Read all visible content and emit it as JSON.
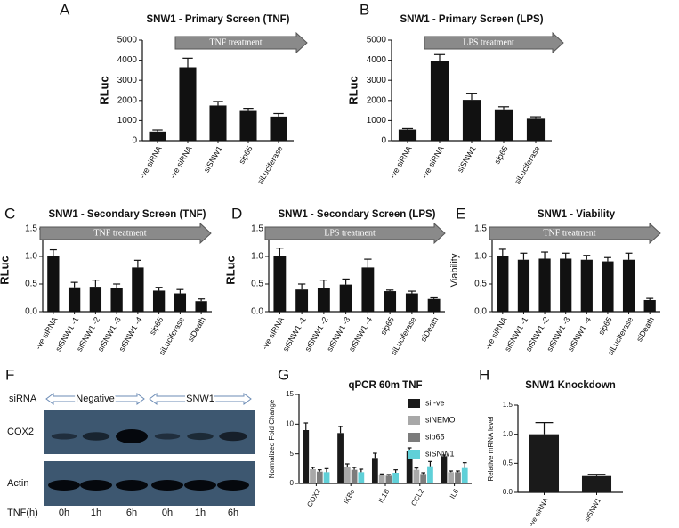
{
  "chart_data": [
    {
      "type": "bar",
      "panel": "A",
      "title": "SNW1 - Primary Screen (TNF)",
      "y_label": "RLuc",
      "annotation": "TNF treatment",
      "categories": [
        "-ve siRNA",
        "-ve siRNA",
        "siSNW1",
        "sip65",
        "siLuciferase"
      ],
      "values": [
        450,
        3650,
        1750,
        1480,
        1200
      ],
      "errors": [
        80,
        450,
        200,
        130,
        150
      ],
      "color": "#111111",
      "ylim": [
        0,
        5000
      ],
      "yticks": [
        0,
        1000,
        2000,
        3000,
        4000,
        5000
      ]
    },
    {
      "type": "bar",
      "panel": "B",
      "title": "SNW1 - Primary Screen (LPS)",
      "y_label": "RLuc",
      "annotation": "LPS treatment",
      "categories": [
        "-ve siRNA",
        "-ve siRNA",
        "siSNW1",
        "sip65",
        "siLuciferase"
      ],
      "values": [
        550,
        3950,
        2030,
        1560,
        1090
      ],
      "errors": [
        50,
        330,
        300,
        130,
        100
      ],
      "color": "#111111",
      "ylim": [
        0,
        5000
      ],
      "yticks": [
        0,
        1000,
        2000,
        3000,
        4000,
        5000
      ]
    },
    {
      "type": "bar",
      "panel": "C",
      "title": "SNW1 - Secondary Screen (TNF)",
      "y_label": "RLuc",
      "annotation": "TNF treatment",
      "categories": [
        "-ve siRNA",
        "siSNW1 -1",
        "siSNW1 -2",
        "siSNW1 -3",
        "siSNW1 -4",
        "sip65",
        "siLuciferase",
        "siDeath"
      ],
      "values": [
        1.0,
        0.44,
        0.45,
        0.42,
        0.8,
        0.38,
        0.33,
        0.19
      ],
      "errors": [
        0.12,
        0.09,
        0.12,
        0.08,
        0.13,
        0.06,
        0.07,
        0.04
      ],
      "color": "#111111",
      "ylim": [
        0,
        1.5
      ],
      "yticks": [
        {
          "value": 0,
          "label": "0.0"
        },
        0.5,
        {
          "value": 1,
          "label": "1.0"
        },
        1.5
      ]
    },
    {
      "type": "bar",
      "panel": "D",
      "title": "SNW1 - Secondary Screen (LPS)",
      "y_label": "RLuc",
      "annotation": "LPS treatment",
      "categories": [
        "-ve siRNA",
        "siSNW1 -1",
        "siSNW1 -2",
        "siSNW1 -3",
        "siSNW1 -4",
        "sip65",
        "siLuciferase",
        "siDeath"
      ],
      "values": [
        1.01,
        0.4,
        0.43,
        0.49,
        0.8,
        0.37,
        0.33,
        0.23
      ],
      "errors": [
        0.14,
        0.1,
        0.14,
        0.1,
        0.15,
        0.02,
        0.04,
        0.02
      ],
      "color": "#111111",
      "ylim": [
        0,
        1.5
      ],
      "yticks": [
        {
          "value": 0,
          "label": "0.0"
        },
        0.5,
        {
          "value": 1,
          "label": "1.0"
        },
        1.5
      ]
    },
    {
      "type": "bar",
      "panel": "E",
      "title": "SNW1 - Viability",
      "y_label": "Viability",
      "annotation": "TNF treatment",
      "categories": [
        "-ve siRNA",
        "siSNW1 -1",
        "siSNW1 -2",
        "siSNW1 -3",
        "siSNW1 -4",
        "sip65",
        "siLuciferase",
        "siDeath"
      ],
      "values": [
        1.0,
        0.94,
        0.96,
        0.96,
        0.94,
        0.91,
        0.94,
        0.21
      ],
      "errors": [
        0.13,
        0.12,
        0.12,
        0.1,
        0.08,
        0.07,
        0.12,
        0.03
      ],
      "color": "#111111",
      "ylim": [
        0,
        1.5
      ],
      "yticks": [
        {
          "value": 0,
          "label": "0.0"
        },
        0.5,
        {
          "value": 1,
          "label": "1.0"
        },
        1.5
      ]
    },
    {
      "type": "grouped_bar",
      "panel": "G",
      "title": "qPCR 60m TNF",
      "y_label": "Normalized Fold Change",
      "categories": [
        "COX2",
        "IKBα",
        "IL1B",
        "CCL2",
        "IL6"
      ],
      "series": [
        {
          "name": "si -ve",
          "color": "#1a1a1a",
          "values": [
            9.0,
            8.5,
            4.3,
            5.4,
            4.6
          ],
          "errors": [
            1.2,
            1.1,
            0.8,
            0.6,
            0.2
          ]
        },
        {
          "name": "siNEMO",
          "color": "#a8a8a8",
          "values": [
            2.4,
            2.8,
            1.4,
            2.3,
            1.9
          ],
          "errors": [
            0.3,
            0.5,
            0.2,
            0.3,
            0.2
          ]
        },
        {
          "name": "sip65",
          "color": "#7c7c7c",
          "values": [
            2.0,
            2.3,
            1.3,
            1.6,
            1.9
          ],
          "errors": [
            0.3,
            0.4,
            0.2,
            0.2,
            0.2
          ]
        },
        {
          "name": "siSNW1",
          "color": "#5fd0d8",
          "values": [
            1.9,
            1.9,
            1.8,
            2.9,
            2.6
          ],
          "errors": [
            0.6,
            0.5,
            0.5,
            0.8,
            0.9
          ]
        }
      ],
      "ylim": [
        0,
        15
      ],
      "yticks": [
        0,
        5,
        10,
        15
      ],
      "legend": "top-right"
    },
    {
      "type": "bar",
      "panel": "H",
      "title": "SNW1 Knockdown",
      "y_label": "Relative mRNA level",
      "categories": [
        "-ve siRNA",
        "siSNW1"
      ],
      "values": [
        1.0,
        0.28
      ],
      "errors": [
        0.2,
        0.03
      ],
      "color": "#1a1a1a",
      "ylim": [
        0,
        1.5
      ],
      "yticks": [
        {
          "value": 0,
          "label": "0.0"
        },
        0.5,
        {
          "value": 1,
          "label": "1.0"
        },
        1.5
      ]
    }
  ],
  "blot": {
    "panel": "F",
    "row_label": "siRNA",
    "groups": [
      "Negative",
      "SNW1"
    ],
    "bands": [
      "COX2",
      "Actin"
    ],
    "time_label": "TNF(h)",
    "times": [
      "0h",
      "1h",
      "6h",
      "0h",
      "1h",
      "6h"
    ]
  }
}
